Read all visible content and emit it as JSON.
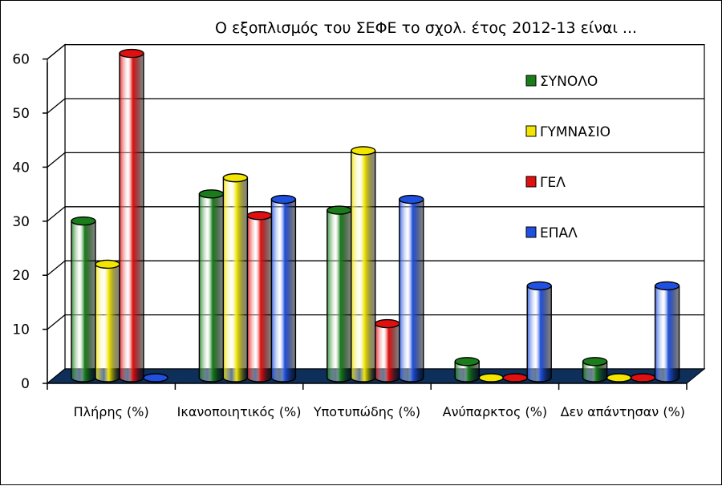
{
  "chart_data": {
    "type": "bar",
    "title": "Ο εξοπλισμός του ΣΕΦΕ το σχολ. έτος 2012-13 είναι ...",
    "categories": [
      "Πλήρης (%)",
      "Ικανοποιητικός (%)",
      "Υποτυπώδης (%)",
      "Ανύπαρκτος (%)",
      "Δεν απάντησαν (%)"
    ],
    "series": [
      {
        "name": "ΣΥΝΟΛΟ",
        "color": "#1a7d1a",
        "values": [
          29,
          34,
          31,
          3,
          3
        ]
      },
      {
        "name": "ΓΥΜΝΑΣΙΟ",
        "color": "#f2e600",
        "values": [
          21,
          37,
          42,
          0,
          0
        ]
      },
      {
        "name": "ΓΕΛ",
        "color": "#e01010",
        "values": [
          60,
          30,
          10,
          0,
          0
        ]
      },
      {
        "name": "ΕΠΑΛ",
        "color": "#2050e0",
        "values": [
          0,
          33,
          33,
          17,
          17
        ]
      }
    ],
    "ylim": [
      0,
      60
    ],
    "yticks": [
      "0",
      "10",
      "20",
      "30",
      "40",
      "50",
      "60"
    ],
    "grid": true,
    "legend_position": "right",
    "floor_color": "#0d2f5a"
  }
}
